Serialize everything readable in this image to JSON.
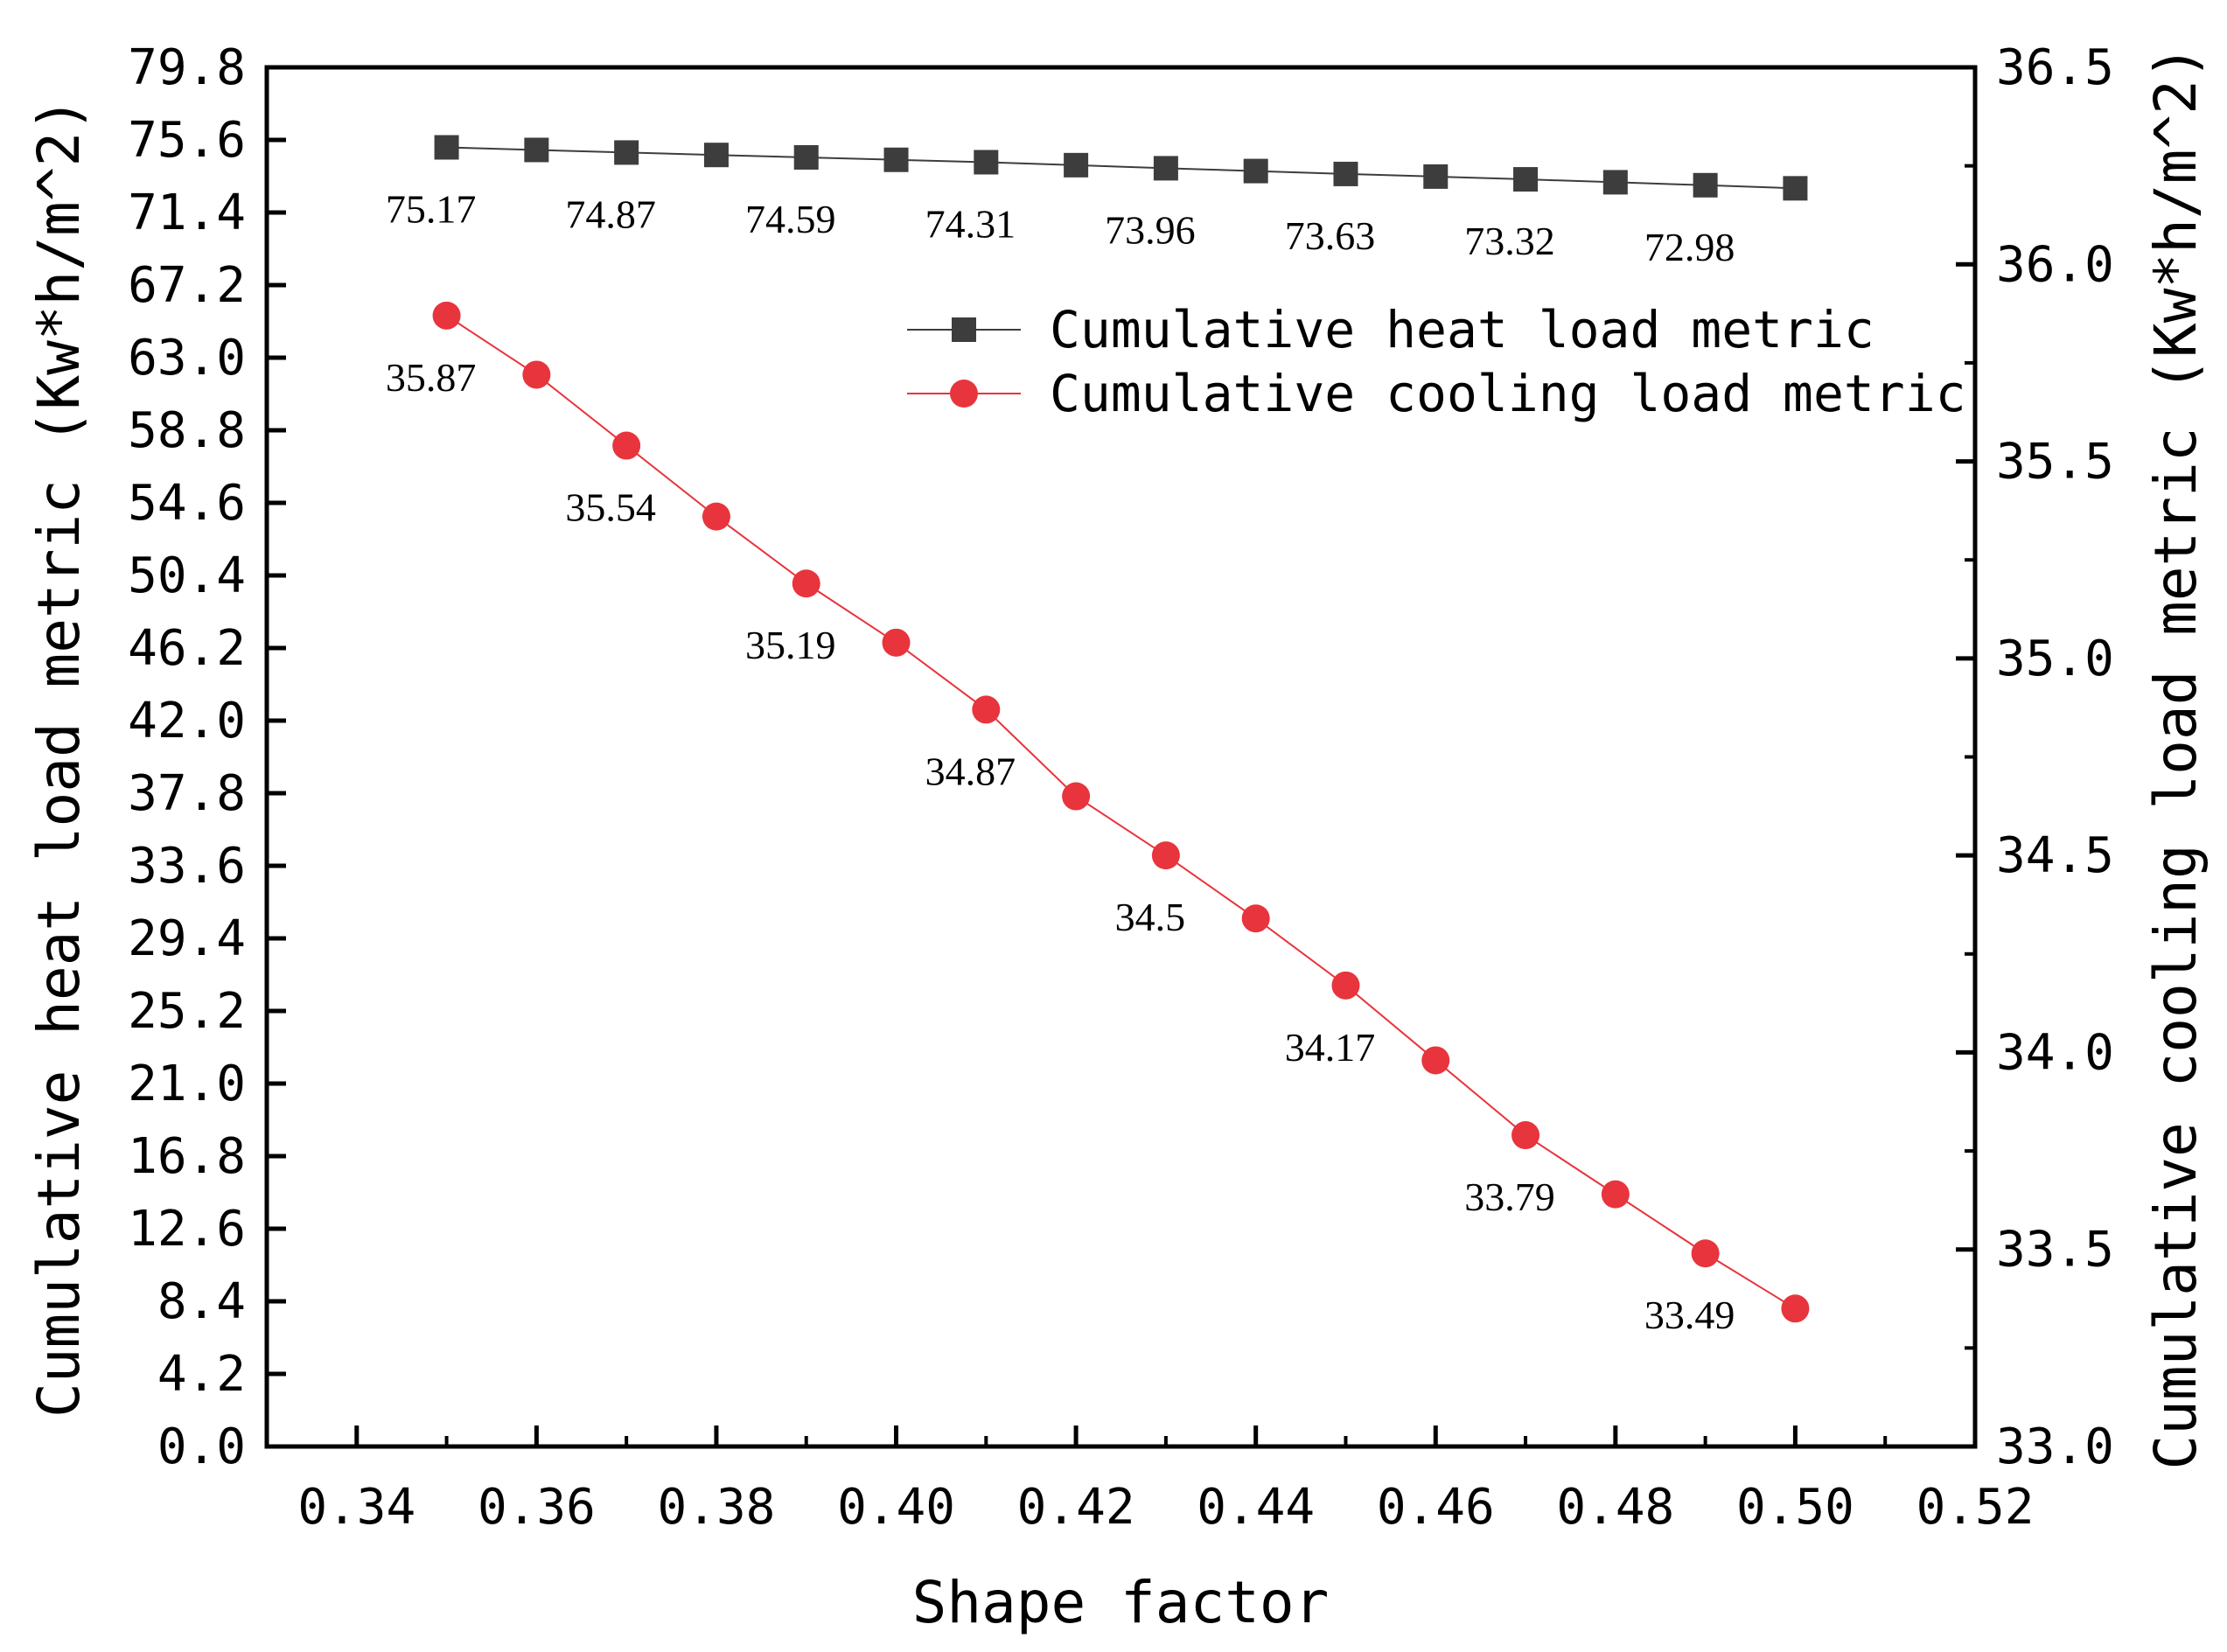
{
  "chart_data": {
    "type": "line",
    "title": "",
    "xlabel": "Shape factor",
    "ylabel_left": "Cumulative heat load metric (Kw*h/m^2)",
    "ylabel_right": "Cumulative cooling load metric (Kw*h/m^2)",
    "xlim": [
      0.33,
      0.52
    ],
    "ylim_left": [
      0.0,
      79.8
    ],
    "ylim_right": [
      33.0,
      36.5
    ],
    "x_ticks": [
      "0.34",
      "0.36",
      "0.38",
      "0.40",
      "0.42",
      "0.44",
      "0.46",
      "0.48",
      "0.50",
      "0.52"
    ],
    "y_left_ticks": [
      "0.0",
      "4.2",
      "8.4",
      "12.6",
      "16.8",
      "21.0",
      "25.2",
      "29.4",
      "33.6",
      "37.8",
      "42.0",
      "46.2",
      "50.4",
      "54.6",
      "58.8",
      "63.0",
      "67.2",
      "71.4",
      "75.6",
      "79.8"
    ],
    "y_right_ticks": [
      "33.0",
      "33.5",
      "34.0",
      "34.5",
      "35.0",
      "35.5",
      "36.0",
      "36.5"
    ],
    "legend_position": "upper-right",
    "x": [
      0.35,
      0.36,
      0.37,
      0.38,
      0.39,
      0.4,
      0.41,
      0.42,
      0.43,
      0.44,
      0.45,
      0.46,
      0.47,
      0.48,
      0.49,
      0.5
    ],
    "series": [
      {
        "name": "Cumulative heat load metric",
        "axis": "left",
        "marker": "square",
        "color": "#3d3d3d",
        "values": [
          75.17,
          75.02,
          74.87,
          74.73,
          74.59,
          74.45,
          74.31,
          74.14,
          73.96,
          73.8,
          73.63,
          73.48,
          73.32,
          73.15,
          72.98,
          72.8
        ],
        "labels": [
          {
            "x": 0.35,
            "text": "75.17"
          },
          {
            "x": 0.37,
            "text": "74.87"
          },
          {
            "x": 0.39,
            "text": "74.59"
          },
          {
            "x": 0.41,
            "text": "74.31"
          },
          {
            "x": 0.43,
            "text": "73.96"
          },
          {
            "x": 0.45,
            "text": "73.63"
          },
          {
            "x": 0.47,
            "text": "73.32"
          },
          {
            "x": 0.49,
            "text": "72.98"
          }
        ]
      },
      {
        "name": "Cumulative cooling load metric",
        "axis": "right",
        "marker": "circle",
        "color": "#e8343c",
        "values": [
          35.87,
          35.72,
          35.54,
          35.36,
          35.19,
          35.04,
          34.87,
          34.65,
          34.5,
          34.34,
          34.17,
          33.98,
          33.79,
          33.64,
          33.49,
          33.35
        ],
        "labels": [
          {
            "x": 0.35,
            "text": "35.87"
          },
          {
            "x": 0.37,
            "text": "35.54"
          },
          {
            "x": 0.39,
            "text": "35.19"
          },
          {
            "x": 0.41,
            "text": "34.87"
          },
          {
            "x": 0.43,
            "text": "34.5"
          },
          {
            "x": 0.45,
            "text": "34.17"
          },
          {
            "x": 0.47,
            "text": "33.79"
          },
          {
            "x": 0.49,
            "text": "33.49"
          }
        ]
      }
    ]
  }
}
